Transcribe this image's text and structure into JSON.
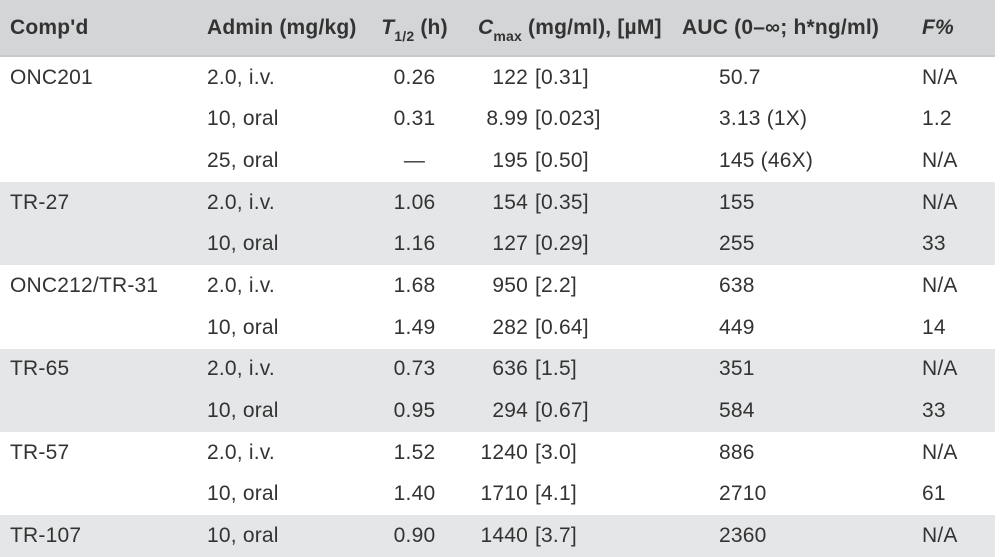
{
  "colors": {
    "header_bg": "#d4d5d6",
    "row_shade": "#e5e6e7",
    "header_border": "#c6c7c9",
    "text": "#333333"
  },
  "table": {
    "headers": {
      "compound": "Comp'd",
      "admin": "Admin (mg/kg)",
      "t_half": {
        "symbol": "T",
        "sub": "1/2",
        "unit": " (h)"
      },
      "c_max": {
        "symbol": "C",
        "sub": "max",
        "unit": " (mg/ml), [µM]"
      },
      "auc": "AUC (0–∞; h*ng/ml)",
      "f_pct": "F%"
    },
    "rows": [
      {
        "group": 0,
        "compound": "ONC201",
        "admin": "2.0, i.v.",
        "t_half": "0.26",
        "cmax": "122",
        "cmax_um": "[0.31]",
        "auc": "50.7",
        "f_pct": "N/A"
      },
      {
        "group": 0,
        "compound": "",
        "admin": "10, oral",
        "t_half": "0.31",
        "cmax": "8.99",
        "cmax_um": "[0.023]",
        "auc": "3.13 (1X)",
        "f_pct": "1.2"
      },
      {
        "group": 0,
        "compound": "",
        "admin": "25, oral",
        "t_half": "—",
        "cmax": "195",
        "cmax_um": "[0.50]",
        "auc": "145 (46X)",
        "f_pct": "N/A"
      },
      {
        "group": 1,
        "compound": "TR-27",
        "admin": "2.0, i.v.",
        "t_half": "1.06",
        "cmax": "154",
        "cmax_um": "[0.35]",
        "auc": "155",
        "f_pct": "N/A"
      },
      {
        "group": 1,
        "compound": "",
        "admin": "10, oral",
        "t_half": "1.16",
        "cmax": "127",
        "cmax_um": "[0.29]",
        "auc": "255",
        "f_pct": "33"
      },
      {
        "group": 2,
        "compound": "ONC212/TR-31",
        "admin": "2.0, i.v.",
        "t_half": "1.68",
        "cmax": "950",
        "cmax_um": "[2.2]",
        "auc": "638",
        "f_pct": "N/A"
      },
      {
        "group": 2,
        "compound": "",
        "admin": "10, oral",
        "t_half": "1.49",
        "cmax": "282",
        "cmax_um": "[0.64]",
        "auc": "449",
        "f_pct": "14"
      },
      {
        "group": 3,
        "compound": "TR-65",
        "admin": "2.0, i.v.",
        "t_half": "0.73",
        "cmax": "636",
        "cmax_um": "[1.5]",
        "auc": "351",
        "f_pct": "N/A"
      },
      {
        "group": 3,
        "compound": "",
        "admin": "10, oral",
        "t_half": "0.95",
        "cmax": "294",
        "cmax_um": "[0.67]",
        "auc": "584",
        "f_pct": "33"
      },
      {
        "group": 4,
        "compound": "TR-57",
        "admin": "2.0, i.v.",
        "t_half": "1.52",
        "cmax": "1240",
        "cmax_um": "[3.0]",
        "auc": "886",
        "f_pct": "N/A"
      },
      {
        "group": 4,
        "compound": "",
        "admin": "10, oral",
        "t_half": "1.40",
        "cmax": "1710",
        "cmax_um": "[4.1]",
        "auc": "2710",
        "f_pct": "61"
      },
      {
        "group": 5,
        "compound": "TR-107",
        "admin": "10, oral",
        "t_half": "0.90",
        "cmax": "1440",
        "cmax_um": "[3.7]",
        "auc": "2360",
        "f_pct": "N/A"
      }
    ]
  }
}
